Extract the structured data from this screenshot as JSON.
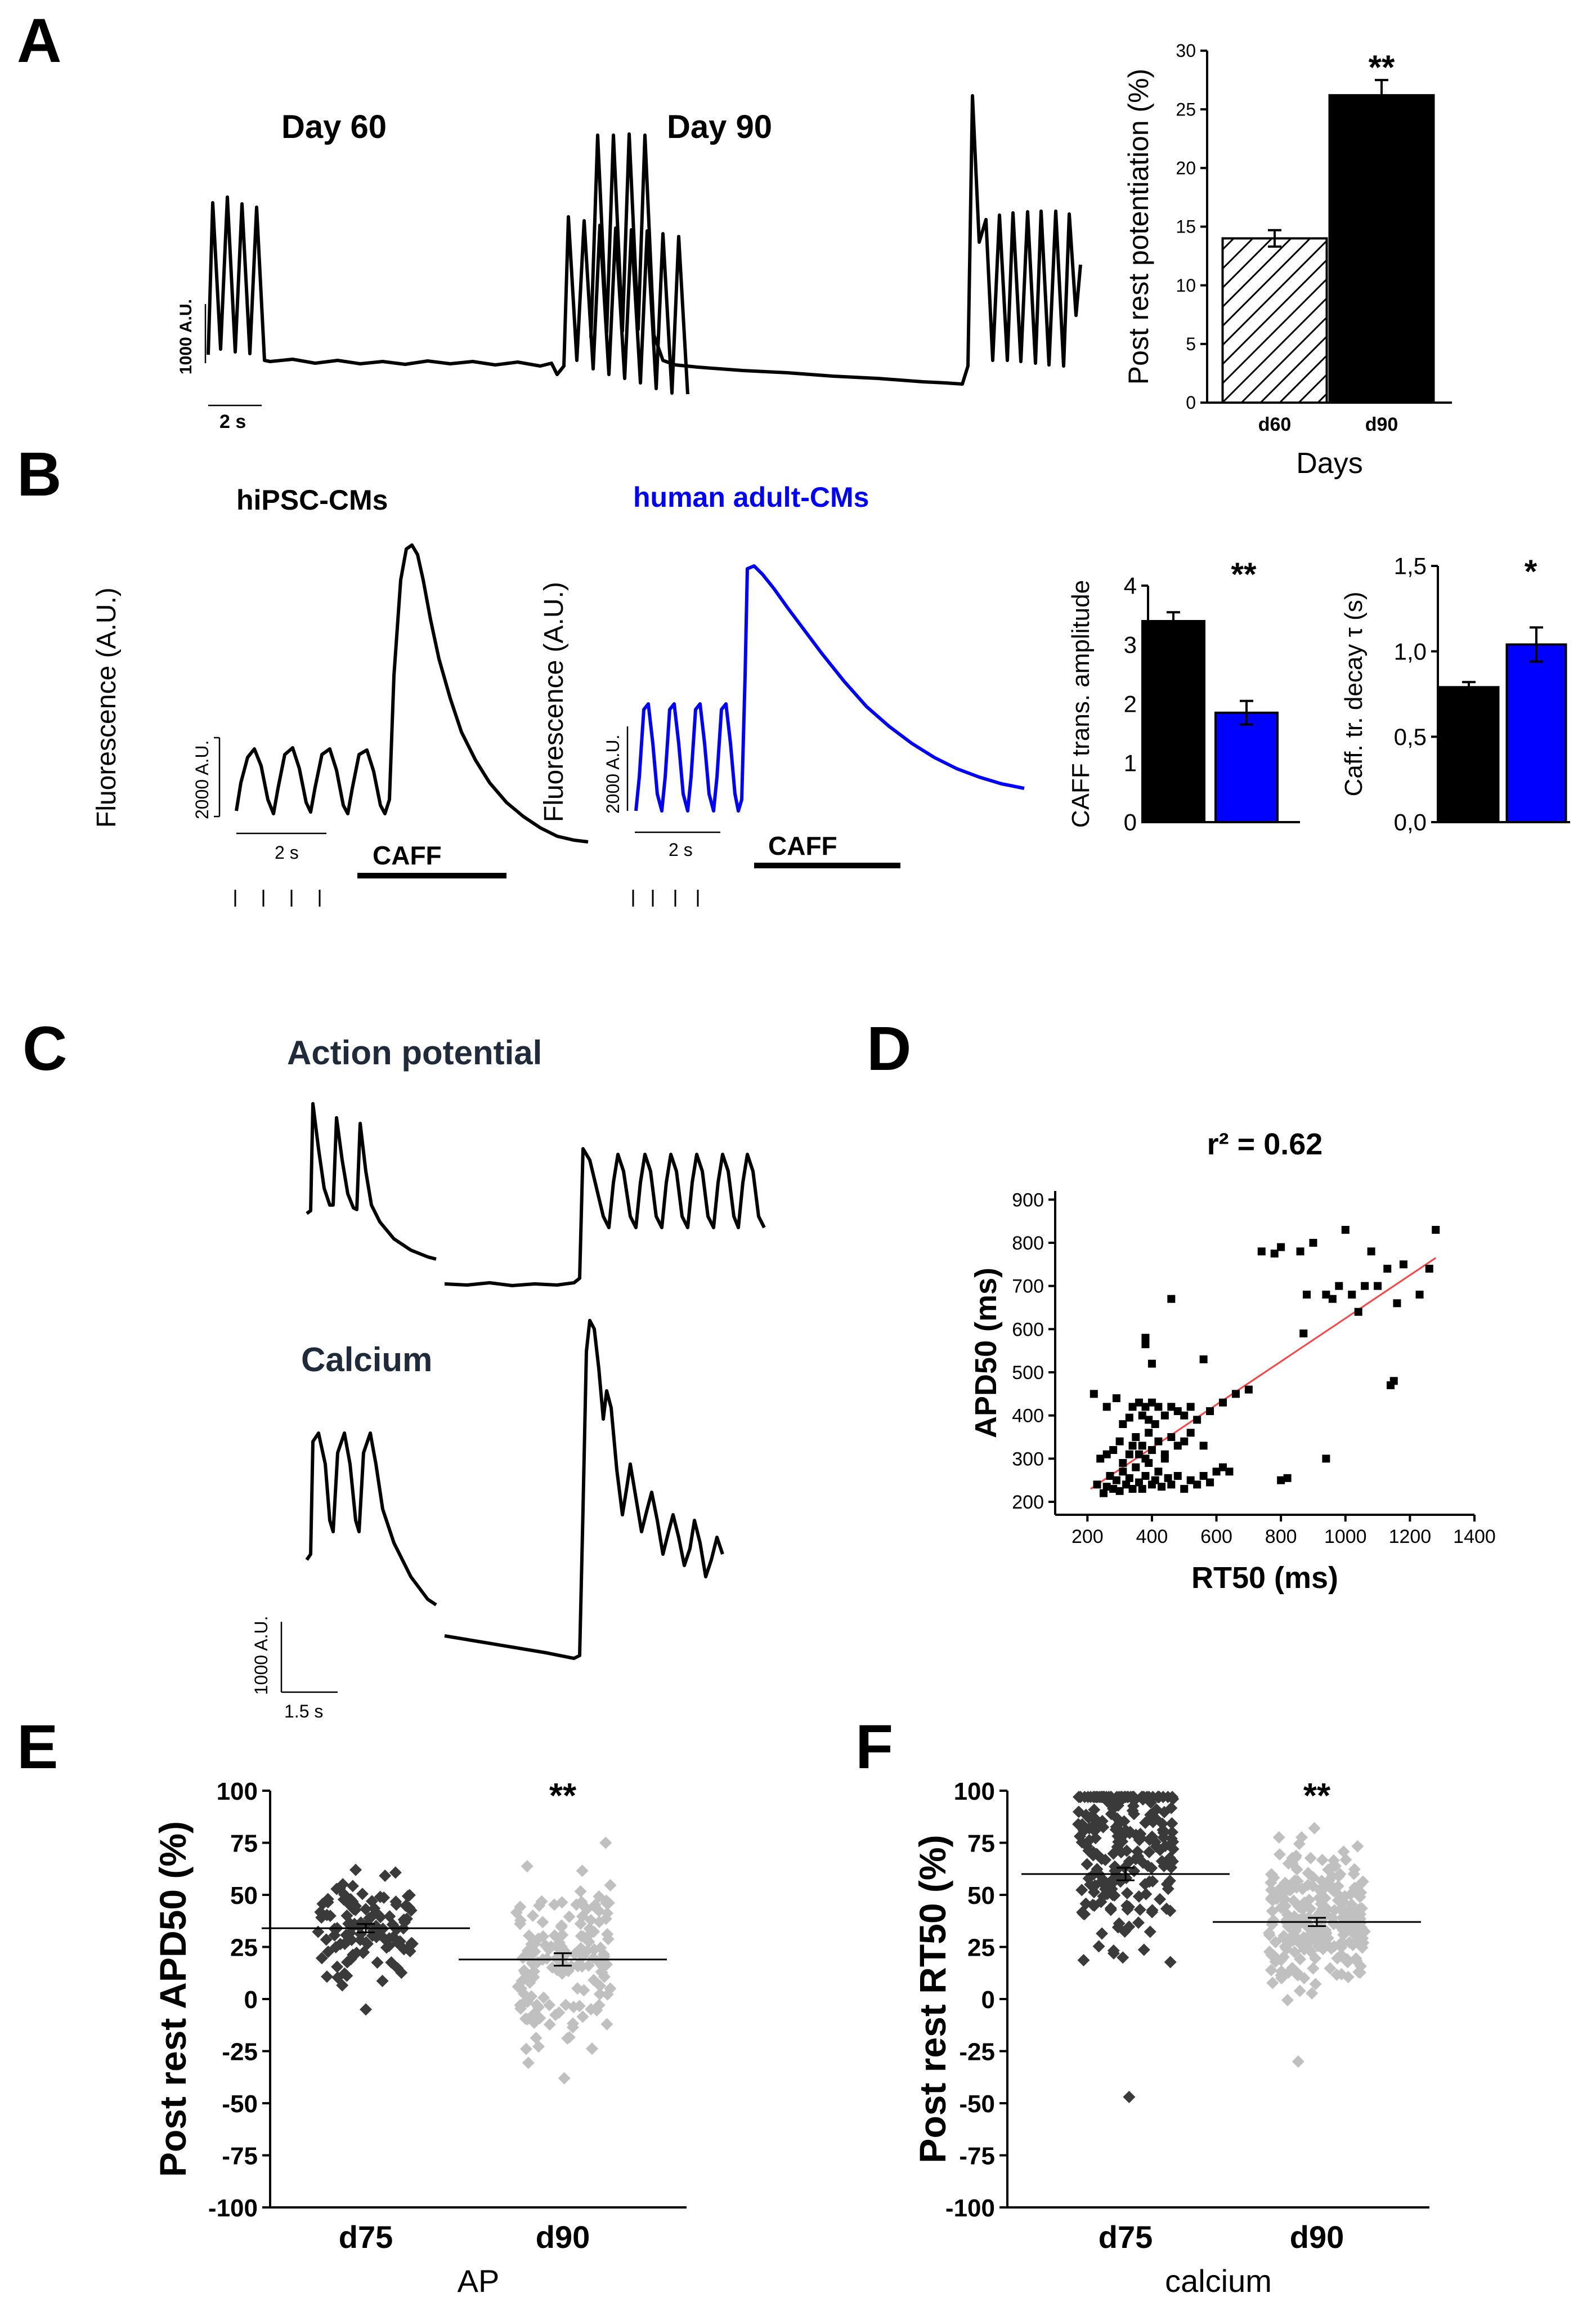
{
  "panel_labels": {
    "a": "A",
    "b": "B",
    "c": "C",
    "d": "D",
    "e": "E",
    "f": "F"
  },
  "colors": {
    "black": "#000000",
    "blue": "#0000ff",
    "dark_grey": "#3a3a3a",
    "light_grey": "#c0c0c0",
    "fit_red": "#ff4040"
  },
  "panel_a": {
    "trace1_title": "Day 60",
    "trace2_title": "Day 90",
    "scale_y": "1000 A.U.",
    "scale_x": "2 s"
  },
  "panel_b": {
    "trace1_title": "hiPSC-CMs",
    "trace2_title": "human adult-CMs",
    "y_label": "Fluorescence (A.U.)",
    "scale_y": "2000 A.U.",
    "scale_x": "2 s",
    "caff_label": "CAFF"
  },
  "panel_c": {
    "ap_title": "Action potential",
    "ca_title": "Calcium",
    "scale_y": "1000 A.U.",
    "scale_x": "1.5 s"
  },
  "chart_data": [
    {
      "id": "A-bar",
      "type": "bar",
      "categories": [
        "d60",
        "d90"
      ],
      "values": [
        14.0,
        26.2
      ],
      "errors": [
        0.7,
        1.3
      ],
      "fills": [
        "hatched",
        "black"
      ],
      "ylabel": "Post rest potentiation (%)",
      "xlabel": "Days",
      "ylim": [
        0,
        30
      ],
      "yticks": [
        "0",
        "5",
        "10",
        "15",
        "20",
        "25",
        "30"
      ],
      "significance": "**"
    },
    {
      "id": "B-amp",
      "type": "bar",
      "categories": [
        "hiPSC-CMs",
        "human adult-CMs"
      ],
      "values": [
        3.4,
        1.85
      ],
      "errors": [
        0.15,
        0.2
      ],
      "ylabel": "CAFF trans. amplitude",
      "ylim": [
        0,
        4
      ],
      "yticks": [
        "0",
        "1",
        "2",
        "3",
        "4"
      ],
      "significance": "**"
    },
    {
      "id": "B-tau",
      "type": "bar",
      "categories": [
        "hiPSC-CMs",
        "human adult-CMs"
      ],
      "values": [
        0.79,
        1.04
      ],
      "errors": [
        0.03,
        0.1
      ],
      "ylabel": "Caff. tr. decay τ (s)",
      "ylim": [
        0,
        1.5
      ],
      "yticks": [
        "0,0",
        "0,5",
        "1,0",
        "1,5"
      ],
      "significance": "*"
    },
    {
      "id": "D-scatter",
      "type": "scatter",
      "title": "r² = 0.62",
      "xlabel": "RT50 (ms)",
      "ylabel": "APD50 (ms)",
      "xlim": [
        100,
        1400
      ],
      "ylim": [
        170,
        920
      ],
      "xticks": [
        "200",
        "400",
        "600",
        "800",
        "1000",
        "1200",
        "1400"
      ],
      "yticks": [
        "200",
        "300",
        "400",
        "500",
        "600",
        "700",
        "800",
        "900"
      ],
      "fit": {
        "x": [
          210,
          1280
        ],
        "y": [
          230,
          765
        ]
      },
      "points": [
        [
          230,
          240
        ],
        [
          250,
          220
        ],
        [
          260,
          235
        ],
        [
          270,
          260
        ],
        [
          280,
          230
        ],
        [
          290,
          250
        ],
        [
          300,
          225
        ],
        [
          310,
          270
        ],
        [
          320,
          240
        ],
        [
          330,
          255
        ],
        [
          340,
          230
        ],
        [
          350,
          280
        ],
        [
          360,
          245
        ],
        [
          370,
          230
        ],
        [
          380,
          260
        ],
        [
          390,
          290
        ],
        [
          400,
          240
        ],
        [
          410,
          250
        ],
        [
          420,
          270
        ],
        [
          430,
          235
        ],
        [
          440,
          300
        ],
        [
          450,
          255
        ],
        [
          460,
          240
        ],
        [
          480,
          260
        ],
        [
          500,
          230
        ],
        [
          520,
          250
        ],
        [
          540,
          240
        ],
        [
          560,
          260
        ],
        [
          580,
          245
        ],
        [
          600,
          270
        ],
        [
          620,
          280
        ],
        [
          240,
          300
        ],
        [
          260,
          310
        ],
        [
          280,
          320
        ],
        [
          300,
          340
        ],
        [
          310,
          290
        ],
        [
          330,
          310
        ],
        [
          340,
          330
        ],
        [
          350,
          350
        ],
        [
          360,
          310
        ],
        [
          370,
          330
        ],
        [
          380,
          300
        ],
        [
          390,
          360
        ],
        [
          400,
          320
        ],
        [
          420,
          340
        ],
        [
          440,
          310
        ],
        [
          460,
          350
        ],
        [
          480,
          330
        ],
        [
          500,
          340
        ],
        [
          520,
          360
        ],
        [
          560,
          330
        ],
        [
          220,
          450
        ],
        [
          260,
          420
        ],
        [
          290,
          440
        ],
        [
          310,
          380
        ],
        [
          330,
          395
        ],
        [
          340,
          420
        ],
        [
          360,
          430
        ],
        [
          370,
          400
        ],
        [
          380,
          420
        ],
        [
          390,
          390
        ],
        [
          400,
          430
        ],
        [
          410,
          380
        ],
        [
          420,
          420
        ],
        [
          440,
          400
        ],
        [
          460,
          420
        ],
        [
          480,
          410
        ],
        [
          500,
          400
        ],
        [
          520,
          420
        ],
        [
          540,
          390
        ],
        [
          580,
          410
        ],
        [
          620,
          430
        ],
        [
          660,
          450
        ],
        [
          700,
          460
        ],
        [
          380,
          580
        ],
        [
          380,
          565
        ],
        [
          400,
          520
        ],
        [
          560,
          530
        ],
        [
          460,
          670
        ],
        [
          740,
          780
        ],
        [
          780,
          775
        ],
        [
          800,
          790
        ],
        [
          860,
          780
        ],
        [
          870,
          590
        ],
        [
          880,
          680
        ],
        [
          900,
          800
        ],
        [
          940,
          680
        ],
        [
          960,
          670
        ],
        [
          980,
          700
        ],
        [
          1000,
          830
        ],
        [
          1020,
          680
        ],
        [
          1040,
          640
        ],
        [
          1060,
          700
        ],
        [
          1080,
          780
        ],
        [
          1100,
          700
        ],
        [
          1130,
          740
        ],
        [
          1160,
          660
        ],
        [
          1180,
          750
        ],
        [
          1230,
          680
        ],
        [
          1260,
          740
        ],
        [
          1280,
          830
        ],
        [
          1140,
          470
        ],
        [
          1150,
          480
        ],
        [
          940,
          300
        ],
        [
          820,
          255
        ],
        [
          800,
          250
        ],
        [
          640,
          270
        ]
      ]
    },
    {
      "id": "E-dots",
      "type": "scatter",
      "ylabel": "Post rest APD50 (%)",
      "xlabel": "AP",
      "categories": [
        "d75",
        "d90"
      ],
      "ylim": [
        -100,
        100
      ],
      "yticks": [
        "100",
        "75",
        "50",
        "25",
        "0",
        "-25",
        "-50",
        "-75",
        "-100"
      ],
      "means": [
        34,
        19
      ],
      "sems": [
        2,
        3
      ],
      "groups": [
        {
          "name": "d75",
          "n": 110,
          "min": -5,
          "max": 62,
          "center": 36,
          "spread": 14
        },
        {
          "name": "d90",
          "n": 150,
          "min": -38,
          "max": 75,
          "center": 18,
          "spread": 24
        }
      ],
      "significance": "**"
    },
    {
      "id": "F-dots",
      "type": "scatter",
      "ylabel": "Post rest RT50 (%)",
      "xlabel": "calcium",
      "categories": [
        "d75",
        "d90"
      ],
      "ylim": [
        -100,
        100
      ],
      "yticks": [
        "100",
        "75",
        "50",
        "25",
        "0",
        "-25",
        "-50",
        "-75",
        "-100"
      ],
      "means": [
        60,
        37
      ],
      "sems": [
        3,
        2
      ],
      "groups": [
        {
          "name": "d75",
          "n": 220,
          "min": -47,
          "max": 97,
          "center": 75,
          "spread": 30
        },
        {
          "name": "d90",
          "n": 240,
          "min": -30,
          "max": 82,
          "center": 38,
          "spread": 20
        }
      ],
      "significance": "**"
    }
  ]
}
